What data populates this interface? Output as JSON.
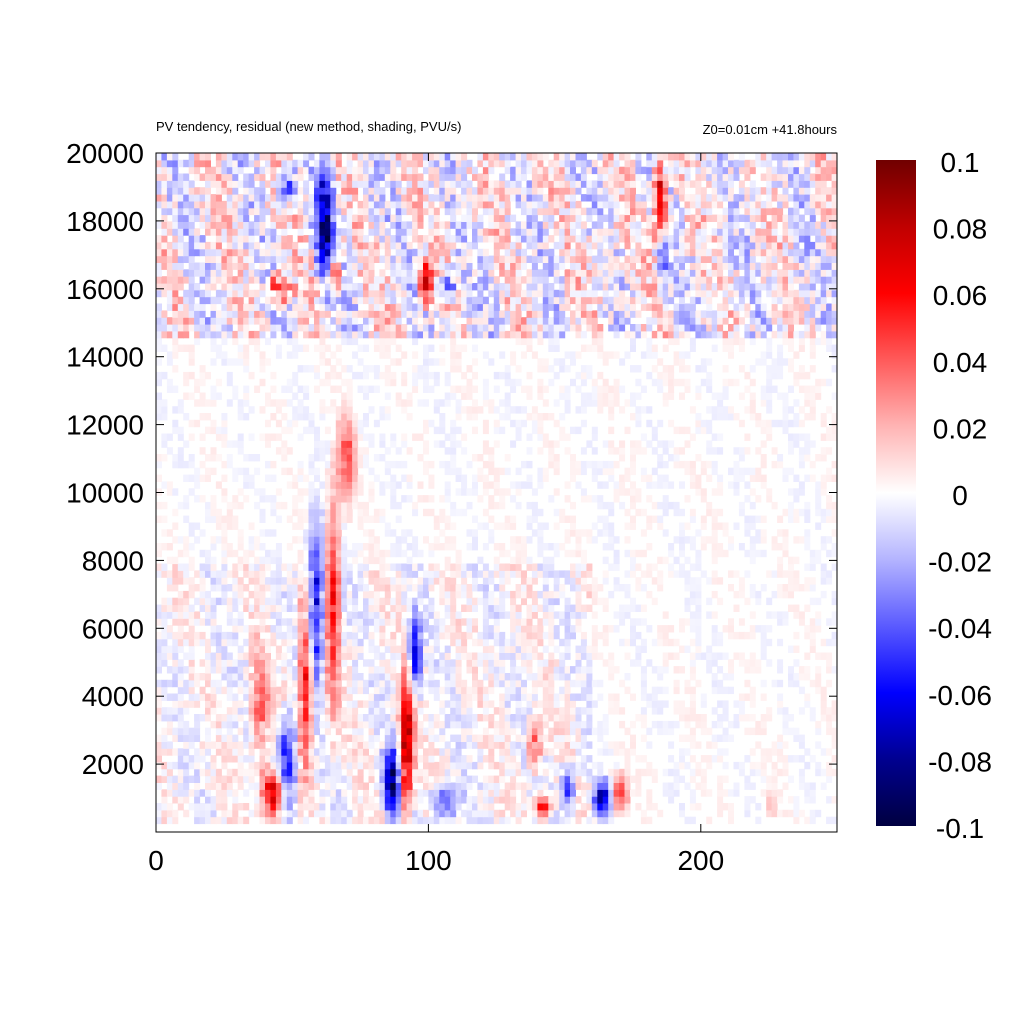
{
  "chart_data": {
    "type": "heatmap",
    "title": "PV tendency, residual (new method, shading, PVU/s)",
    "subtitle": "Z0=0.01cm   +41.8hours",
    "xlabel": "",
    "ylabel": "",
    "xlim": [
      0,
      250
    ],
    "ylim": [
      250,
      20000
    ],
    "x_ticks": [
      0,
      100,
      200
    ],
    "y_ticks": [
      2000,
      4000,
      6000,
      8000,
      10000,
      12000,
      14000,
      16000,
      18000,
      20000
    ],
    "colorbar": {
      "range": [
        -0.1,
        0.1
      ],
      "ticks": [
        -0.1,
        -0.08,
        -0.06,
        -0.04,
        -0.02,
        0,
        0.02,
        0.04,
        0.06,
        0.08,
        0.1
      ],
      "tick_labels": [
        "-0.1",
        "-0.08",
        "-0.06",
        "-0.04",
        "-0.02",
        "0",
        "0.02",
        "0.04",
        "0.06",
        "0.08",
        "0.1"
      ],
      "colormap": [
        {
          "value": -0.1,
          "color": "#000040"
        },
        {
          "value": -0.08,
          "color": "#000090"
        },
        {
          "value": -0.06,
          "color": "#0000ff"
        },
        {
          "value": -0.04,
          "color": "#5a5aff"
        },
        {
          "value": -0.02,
          "color": "#b4b4ff"
        },
        {
          "value": 0,
          "color": "#ffffff"
        },
        {
          "value": 0.02,
          "color": "#ffb4b4"
        },
        {
          "value": 0.04,
          "color": "#ff5a5a"
        },
        {
          "value": 0.06,
          "color": "#ff0000"
        },
        {
          "value": 0.08,
          "color": "#c00000"
        },
        {
          "value": 0.1,
          "color": "#700000"
        }
      ]
    },
    "features": [
      {
        "x_range": [
          38,
          48
        ],
        "y_range": [
          300,
          2000
        ],
        "value": 0.07
      },
      {
        "x_range": [
          44,
          52
        ],
        "y_range": [
          500,
          3500
        ],
        "value": -0.06
      },
      {
        "x_range": [
          34,
          42
        ],
        "y_range": [
          2000,
          5500
        ],
        "value": 0.04
      },
      {
        "x_range": [
          52,
          58
        ],
        "y_range": [
          1500,
          7500
        ],
        "value": 0.06
      },
      {
        "x_range": [
          55,
          62
        ],
        "y_range": [
          4000,
          9500
        ],
        "value": -0.06
      },
      {
        "x_range": [
          62,
          68
        ],
        "y_range": [
          3000,
          10500
        ],
        "value": 0.05
      },
      {
        "x_range": [
          66,
          74
        ],
        "y_range": [
          9500,
          12500
        ],
        "value": 0.04
      },
      {
        "x_range": [
          83,
          90
        ],
        "y_range": [
          300,
          2800
        ],
        "value": -0.08
      },
      {
        "x_range": [
          89,
          95
        ],
        "y_range": [
          400,
          5000
        ],
        "value": 0.08
      },
      {
        "x_range": [
          92,
          98
        ],
        "y_range": [
          4000,
          6500
        ],
        "value": -0.06
      },
      {
        "x_range": [
          100,
          112
        ],
        "y_range": [
          300,
          1500
        ],
        "value": -0.04
      },
      {
        "x_range": [
          136,
          142
        ],
        "y_range": [
          1800,
          3500
        ],
        "value": 0.04
      },
      {
        "x_range": [
          139,
          145
        ],
        "y_range": [
          300,
          1200
        ],
        "value": 0.06
      },
      {
        "x_range": [
          148,
          154
        ],
        "y_range": [
          500,
          2000
        ],
        "value": -0.05
      },
      {
        "x_range": [
          160,
          168
        ],
        "y_range": [
          400,
          1600
        ],
        "value": -0.07
      },
      {
        "x_range": [
          166,
          174
        ],
        "y_range": [
          500,
          1800
        ],
        "value": 0.04
      },
      {
        "x_range": [
          40,
          50
        ],
        "y_range": [
          15500,
          16500
        ],
        "value": 0.06
      },
      {
        "x_range": [
          44,
          52
        ],
        "y_range": [
          18500,
          19500
        ],
        "value": -0.05
      },
      {
        "x_range": [
          58,
          66
        ],
        "y_range": [
          16000,
          19800
        ],
        "value": -0.08
      },
      {
        "x_range": [
          62,
          68
        ],
        "y_range": [
          15800,
          17000
        ],
        "value": 0.06
      },
      {
        "x_range": [
          96,
          102
        ],
        "y_range": [
          15500,
          16800
        ],
        "value": 0.08
      },
      {
        "x_range": [
          104,
          110
        ],
        "y_range": [
          15600,
          16600
        ],
        "value": -0.06
      },
      {
        "x_range": [
          182,
          188
        ],
        "y_range": [
          17500,
          19800
        ],
        "value": 0.08
      },
      {
        "x_range": [
          184,
          188
        ],
        "y_range": [
          16000,
          17500
        ],
        "value": -0.05
      },
      {
        "x_range": [
          224,
          228
        ],
        "y_range": [
          300,
          1200
        ],
        "value": 0.02
      }
    ]
  }
}
